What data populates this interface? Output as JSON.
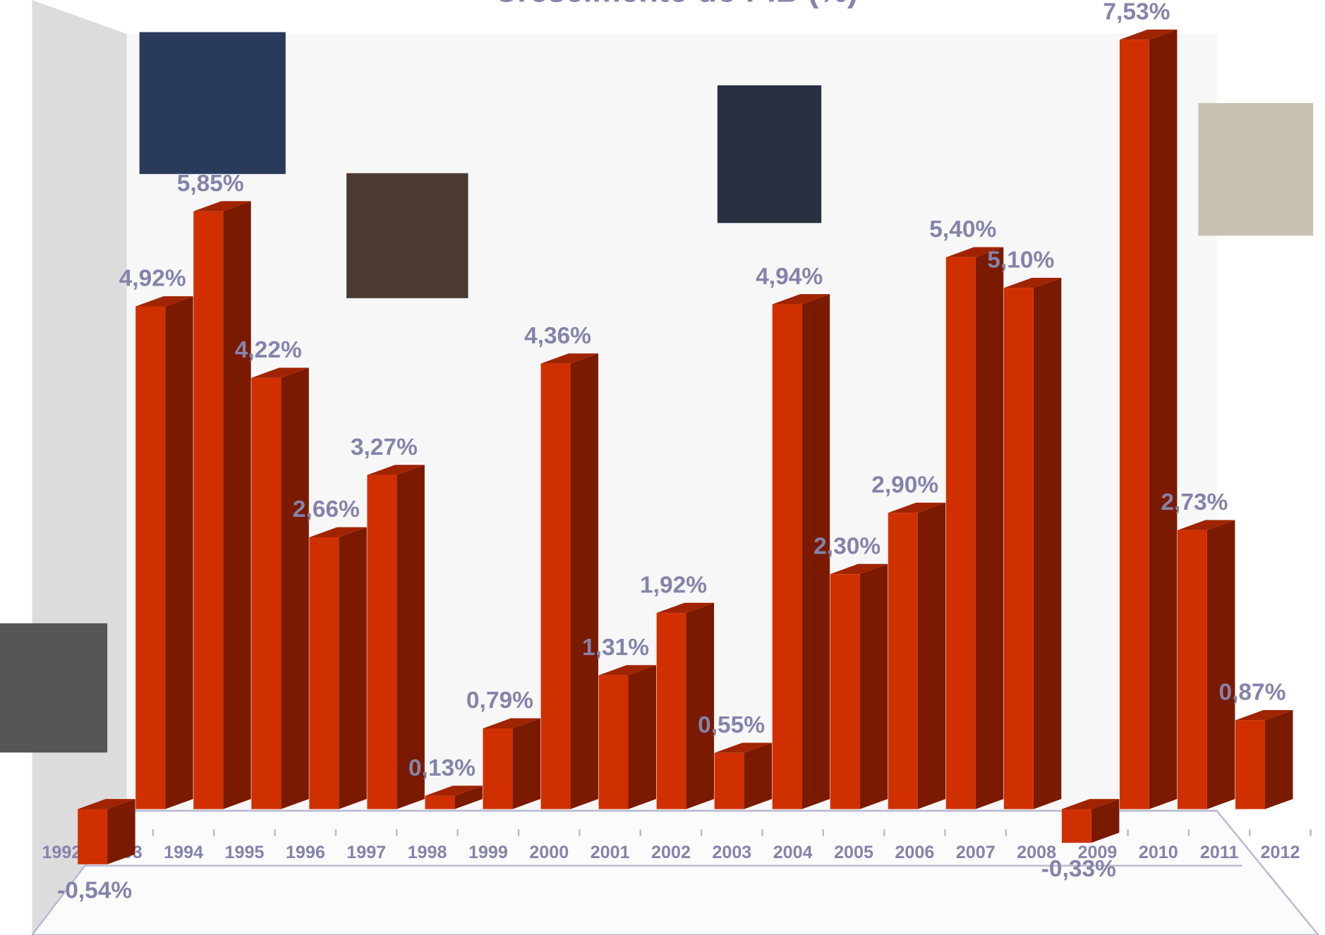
{
  "chart_data": {
    "type": "bar3d",
    "title": "Crescimento do PIB (%)",
    "categories": [
      "1992",
      "1993",
      "1994",
      "1995",
      "1996",
      "1997",
      "1998",
      "1999",
      "2000",
      "2001",
      "2002",
      "2003",
      "2004",
      "2005",
      "2006",
      "2007",
      "2008",
      "2009",
      "2010",
      "2011",
      "2012"
    ],
    "values": [
      -0.54,
      4.92,
      5.85,
      4.22,
      2.66,
      3.27,
      0.13,
      0.79,
      4.36,
      1.31,
      1.92,
      0.55,
      4.94,
      2.3,
      2.9,
      5.4,
      5.1,
      -0.33,
      7.53,
      2.73,
      0.87
    ],
    "value_labels": [
      "-0,54%",
      "4,92%",
      "5,85%",
      "4,22%",
      "2,66%",
      "3,27%",
      "0,13%",
      "0,79%",
      "4,36%",
      "1,31%",
      "1,92%",
      "0,55%",
      "4,94%",
      "2,30%",
      "2,90%",
      "5,40%",
      "5,10%",
      "-0,33%",
      "7,53%",
      "2,73%",
      "0,87%"
    ],
    "color": "#d03000"
  }
}
